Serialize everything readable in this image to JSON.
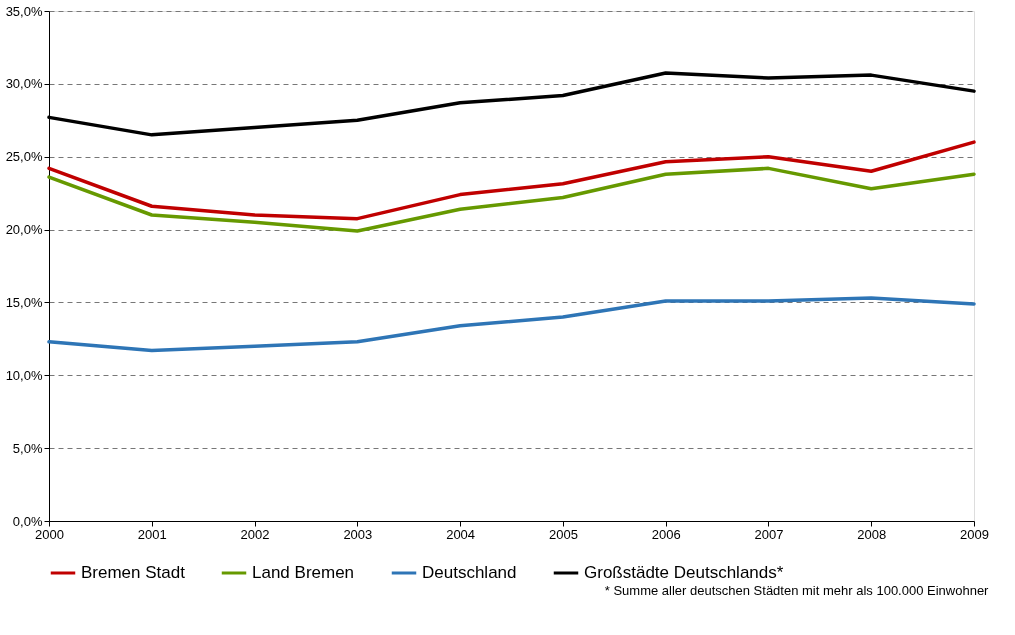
{
  "chart_data": {
    "type": "line",
    "x": [
      2000,
      2001,
      2002,
      2003,
      2004,
      2005,
      2006,
      2007,
      2008,
      2009
    ],
    "xlim": [
      2000,
      2009
    ],
    "xticks": [
      2000,
      2001,
      2002,
      2003,
      2004,
      2005,
      2006,
      2007,
      2008,
      2009
    ],
    "ylim": [
      0,
      35
    ],
    "yticks": [
      {
        "value": 0,
        "label": "0,0%"
      },
      {
        "value": 5,
        "label": "5,0%"
      },
      {
        "value": 10,
        "label": "10,0%"
      },
      {
        "value": 15,
        "label": "15,0%"
      },
      {
        "value": 20,
        "label": "20,0%"
      },
      {
        "value": 25,
        "label": "25,0%"
      },
      {
        "value": 30,
        "label": "30,0%"
      },
      {
        "value": 35,
        "label": "35,0%"
      }
    ],
    "grid": "y",
    "legend": "bottom",
    "marker": "none",
    "line_style": "solid",
    "series": [
      {
        "name": "Bremen Stadt",
        "color": "#c00000",
        "values": [
          24.2,
          21.6,
          21.0,
          20.75,
          22.4,
          23.15,
          24.65,
          25.0,
          24.0,
          26.0
        ]
      },
      {
        "name": "Land Bremen",
        "color": "#669900",
        "values": [
          23.6,
          21.0,
          20.5,
          19.9,
          21.4,
          22.2,
          23.8,
          24.2,
          22.8,
          23.8
        ]
      },
      {
        "name": "Deutschland",
        "color": "#2e75b6",
        "values": [
          12.3,
          11.7,
          12.0,
          12.3,
          13.4,
          14.0,
          15.1,
          15.1,
          15.3,
          14.9
        ]
      },
      {
        "name": "Großstädte Deutschlands*",
        "color": "#000000",
        "values": [
          27.7,
          26.5,
          27.0,
          27.5,
          28.7,
          29.2,
          30.75,
          30.4,
          30.6,
          29.5
        ]
      }
    ],
    "annotations": [
      "* Summe aller deutschen Städten mit mehr als 100.000 Einwohner"
    ]
  }
}
